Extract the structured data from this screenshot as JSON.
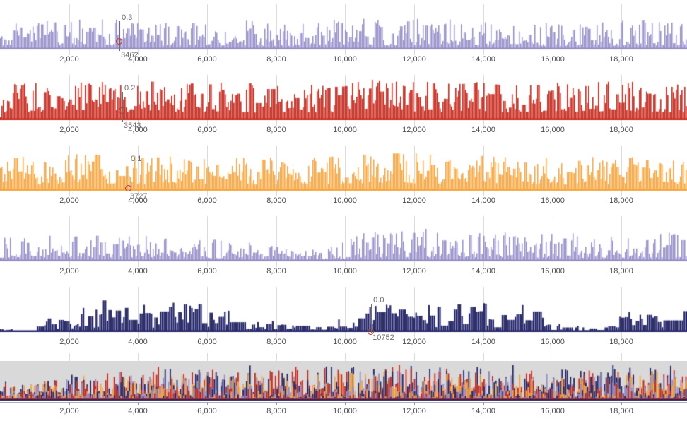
{
  "colors": {
    "lavender": "#958dc8",
    "red": "#c7281d",
    "orange": "#f6a43c",
    "navy": "#222366",
    "gridline": "#dcdcdc",
    "overlay_background": "#d9d9d9",
    "axis_line": "#b0b0b0",
    "axis_tick": "#999999",
    "tick_label_text": "#4d4d4d",
    "annotation_text": "#6e6e6e",
    "cursor_line": "#6e6e6e",
    "marker_stroke": "#cf3426"
  },
  "axis": {
    "x_min": 0,
    "x_max": 19900,
    "grid": true,
    "ticks": [
      {
        "value": 2000,
        "label": "2,000"
      },
      {
        "value": 4000,
        "label": "4,000"
      },
      {
        "value": 6000,
        "label": "6,000"
      },
      {
        "value": 8000,
        "label": "8,000"
      },
      {
        "value": 10000,
        "label": "10,000"
      },
      {
        "value": 12000,
        "label": "12,000"
      },
      {
        "value": 14000,
        "label": "14,000"
      },
      {
        "value": 16000,
        "label": "16,000"
      },
      {
        "value": 18000,
        "label": "18,000"
      }
    ]
  },
  "chart_data": [
    {
      "type": "bar",
      "name": "track-1",
      "series": "lavender-signal",
      "color_key": "lavender",
      "x_range": [
        0,
        19900
      ],
      "annotation": {
        "x": 3462,
        "value_label": "0.3",
        "x_label": "3462",
        "marker_dy": 59
      },
      "signal_model": {
        "seed": 11,
        "pitch": 2,
        "bar_width": 1.5,
        "base": 6,
        "max_height": 38,
        "exponent": 1.5,
        "hold": 0.12,
        "envelope": [
          [
            0,
            0.8
          ],
          [
            0.06,
            0.95
          ],
          [
            0.13,
            1
          ],
          [
            0.25,
            0.9
          ],
          [
            0.38,
            0.85
          ],
          [
            0.5,
            0.9
          ],
          [
            0.6,
            1
          ],
          [
            0.72,
            0.92
          ],
          [
            0.82,
            0.85
          ],
          [
            0.92,
            0.95
          ],
          [
            1,
            0.9
          ]
        ]
      }
    },
    {
      "type": "bar",
      "name": "track-2",
      "series": "red-signal",
      "color_key": "red",
      "x_range": [
        0,
        19900
      ],
      "annotation": {
        "x": 3543,
        "value_label": "0.2",
        "x_label": "3543",
        "marker_dy": 57
      },
      "signal_model": {
        "seed": 23,
        "pitch": 2,
        "bar_width": 1.6,
        "base": 12,
        "max_height": 46,
        "exponent": 1.25,
        "hold": 0.2,
        "envelope": [
          [
            0,
            0.9
          ],
          [
            0.08,
            1
          ],
          [
            0.2,
            0.95
          ],
          [
            0.33,
            0.92
          ],
          [
            0.44,
            0.85
          ],
          [
            0.52,
            1
          ],
          [
            0.64,
            0.95
          ],
          [
            0.78,
            0.9
          ],
          [
            0.9,
            0.97
          ],
          [
            1,
            0.92
          ]
        ]
      }
    },
    {
      "type": "bar",
      "name": "track-3",
      "series": "orange-signal",
      "color_key": "orange",
      "x_range": [
        0,
        19900
      ],
      "annotation": {
        "x": 3727,
        "value_label": "0.1",
        "x_label": "3727",
        "marker_dy": 67
      },
      "signal_model": {
        "seed": 37,
        "pitch": 2,
        "bar_width": 1.5,
        "base": 10,
        "max_height": 44,
        "exponent": 1.35,
        "hold": 0.18,
        "envelope": [
          [
            0,
            0.85
          ],
          [
            0.1,
            1
          ],
          [
            0.22,
            0.92
          ],
          [
            0.36,
            0.88
          ],
          [
            0.48,
            0.9
          ],
          [
            0.58,
            1
          ],
          [
            0.68,
            0.92
          ],
          [
            0.82,
            0.87
          ],
          [
            0.93,
            0.92
          ],
          [
            1,
            0.9
          ]
        ]
      }
    },
    {
      "type": "bar",
      "name": "track-4",
      "series": "lavender-signal-2",
      "color_key": "lavender",
      "x_range": [
        0,
        19900
      ],
      "annotation": null,
      "signal_model": {
        "seed": 53,
        "pitch": 2,
        "bar_width": 1.5,
        "base": 6,
        "max_height": 38,
        "exponent": 1.5,
        "hold": 0.12,
        "envelope": [
          [
            0,
            0.8
          ],
          [
            0.1,
            0.92
          ],
          [
            0.2,
            0.85
          ],
          [
            0.32,
            0.72
          ],
          [
            0.4,
            0.55
          ],
          [
            0.44,
            0.35
          ],
          [
            0.48,
            0.5
          ],
          [
            0.53,
            0.95
          ],
          [
            0.6,
            1
          ],
          [
            0.68,
            1
          ],
          [
            0.76,
            0.9
          ],
          [
            0.85,
            0.82
          ],
          [
            0.93,
            0.88
          ],
          [
            1,
            0.9
          ]
        ]
      }
    },
    {
      "type": "bar",
      "name": "track-5",
      "series": "navy-signal",
      "color_key": "navy",
      "x_range": [
        0,
        19900
      ],
      "annotation": {
        "x": 10752,
        "value_label": "0.0",
        "x_label": "10752",
        "marker_dy": 70
      },
      "signal_model": {
        "seed": 71,
        "pitch": 2.6,
        "bar_width": 2.2,
        "base": 6,
        "max_height": 40,
        "exponent": 1.0,
        "hold": 0.5,
        "envelope": [
          [
            0,
            0.1
          ],
          [
            0.035,
            0.15
          ],
          [
            0.05,
            0.55
          ],
          [
            0.08,
            0.5
          ],
          [
            0.1,
            0.35
          ],
          [
            0.12,
            0.9
          ],
          [
            0.2,
            0.95
          ],
          [
            0.27,
            0.9
          ],
          [
            0.32,
            0.6
          ],
          [
            0.37,
            0.4
          ],
          [
            0.4,
            0.25
          ],
          [
            0.48,
            0.22
          ],
          [
            0.51,
            0.6
          ],
          [
            0.55,
            0.95
          ],
          [
            0.63,
            0.95
          ],
          [
            0.7,
            0.9
          ],
          [
            0.77,
            0.85
          ],
          [
            0.8,
            0.3
          ],
          [
            0.84,
            0.15
          ],
          [
            0.88,
            0.18
          ],
          [
            0.9,
            0.5
          ],
          [
            0.95,
            0.6
          ],
          [
            1,
            0.75
          ]
        ]
      }
    },
    {
      "type": "bar-overlay",
      "name": "track-6-overlay",
      "series": "combined-signals",
      "x_range": [
        0,
        19900
      ],
      "background_key": "overlay_background",
      "signal_model": {
        "seed": 97,
        "pitch": 2.4,
        "bar_width": 1.8,
        "base": 2,
        "envelope": [
          [
            0,
            0.45
          ],
          [
            0.1,
            0.7
          ],
          [
            0.2,
            0.85
          ],
          [
            0.3,
            0.9
          ],
          [
            0.42,
            0.85
          ],
          [
            0.52,
            1
          ],
          [
            0.62,
            0.95
          ],
          [
            0.72,
            0.9
          ],
          [
            0.82,
            0.85
          ],
          [
            0.92,
            0.9
          ],
          [
            1,
            0.85
          ]
        ],
        "components": [
          {
            "color_key": "red",
            "max_height": 48,
            "exponent": 1.9
          },
          {
            "color_key": "navy",
            "max_height": 50,
            "exponent": 1.7
          },
          {
            "color_key": "orange",
            "max_height": 40,
            "exponent": 2.3
          },
          {
            "color_key": "lavender",
            "max_height": 42,
            "exponent": 2.5
          }
        ]
      }
    }
  ]
}
